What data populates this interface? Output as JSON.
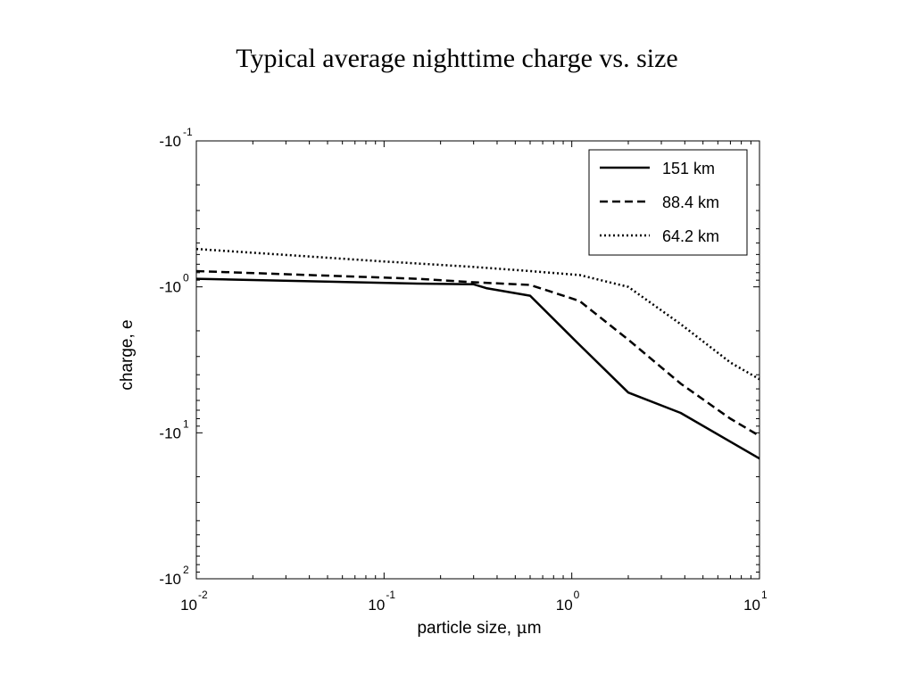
{
  "chart_data": {
    "type": "line",
    "title": "Typical average nighttime charge vs. size",
    "xlabel": "particle size, μm",
    "xlabel_prefix": "particle size, ",
    "xlabel_mu": "μ",
    "xlabel_suffix": "m",
    "ylabel": "charge, e",
    "x_scale": "log",
    "y_scale": "log (negative values, magnitude increasing downward)",
    "xlim": [
      0.01,
      10
    ],
    "ylim": [
      -0.1,
      -100
    ],
    "x_ticks": [
      {
        "base": "10",
        "exp": "-2",
        "value": 0.01
      },
      {
        "base": "10",
        "exp": "-1",
        "value": 0.1
      },
      {
        "base": "10",
        "exp": "0",
        "value": 1
      },
      {
        "base": "10",
        "exp": "1",
        "value": 10
      }
    ],
    "y_ticks": [
      {
        "base": "-10",
        "exp": "-1",
        "value": -0.1
      },
      {
        "base": "-10",
        "exp": "0",
        "value": -1
      },
      {
        "base": "-10",
        "exp": "1",
        "value": -10
      },
      {
        "base": "-10",
        "exp": "2",
        "value": -100
      }
    ],
    "grid": false,
    "legend_position": "top-right",
    "series": [
      {
        "name": "151 km",
        "style": "solid",
        "x": [
          0.01,
          0.15,
          0.3,
          0.35,
          0.6,
          1.1,
          2.0,
          3.8,
          7.0,
          10
        ],
        "y": [
          -0.88,
          -0.95,
          -0.96,
          -1.02,
          -1.15,
          -2.5,
          -5.3,
          -7.3,
          -11.5,
          -15.0
        ]
      },
      {
        "name": "88.4 km",
        "style": "dashed",
        "x": [
          0.01,
          0.15,
          0.3,
          0.6,
          1.1,
          2.0,
          3.8,
          7.0,
          10
        ],
        "y": [
          -0.78,
          -0.88,
          -0.93,
          -0.97,
          -1.25,
          -2.3,
          -4.6,
          -8.0,
          -10.5
        ]
      },
      {
        "name": "64.2 km",
        "style": "dotted",
        "x": [
          0.01,
          0.1,
          0.3,
          0.6,
          1.1,
          2.0,
          3.8,
          7.0,
          10
        ],
        "y": [
          -0.55,
          -0.67,
          -0.73,
          -0.78,
          -0.83,
          -1.0,
          -1.8,
          -3.3,
          -4.3
        ]
      }
    ]
  }
}
